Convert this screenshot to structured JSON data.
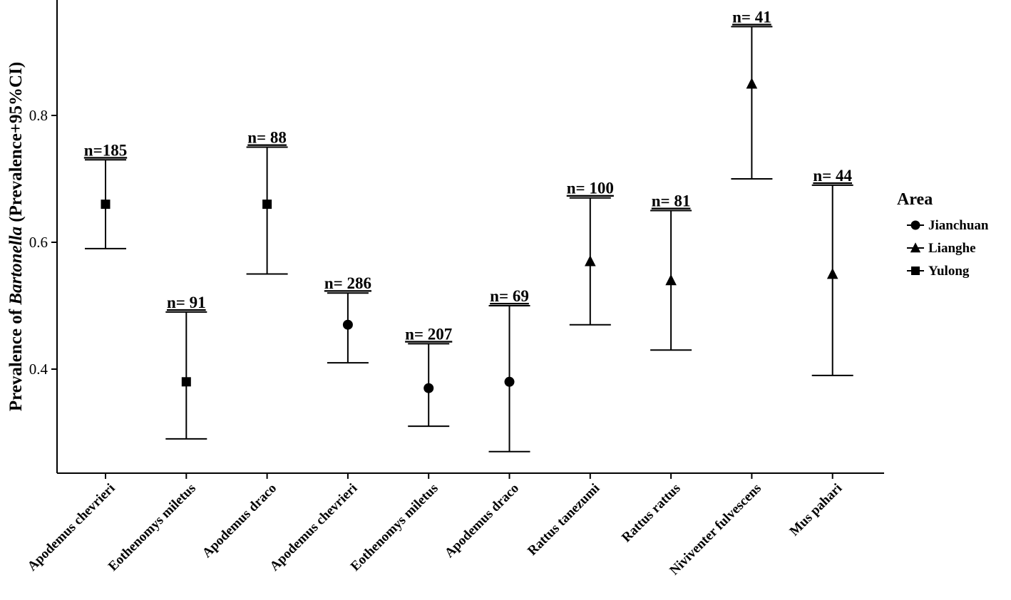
{
  "chart_data": {
    "type": "errorbar",
    "title": "",
    "xlabel": "",
    "ylabel": {
      "prefix": "Prevalence of ",
      "italic": "Bartonella",
      "suffix": " (Prevalence+95%CI)"
    },
    "ylim": [
      0.23,
      0.97
    ],
    "yticks": [
      0.4,
      0.6,
      0.8
    ],
    "ytick_labels": [
      "0.4",
      "0.6",
      "0.8"
    ],
    "legend": {
      "title": "Area",
      "position": "right",
      "entries": [
        {
          "label": "Jianchuan",
          "marker": "circle"
        },
        {
          "label": "Lianghe",
          "marker": "triangle"
        },
        {
          "label": "Yulong",
          "marker": "square"
        }
      ]
    },
    "points": [
      {
        "category": "Apodemus chevrieri",
        "area": "Yulong",
        "marker": "square",
        "value": 0.66,
        "lower": 0.59,
        "upper": 0.73,
        "n_label": "n=185"
      },
      {
        "category": "Eothenomys miletus",
        "area": "Yulong",
        "marker": "square",
        "value": 0.38,
        "lower": 0.29,
        "upper": 0.49,
        "n_label": "n= 91"
      },
      {
        "category": "Apodemus draco",
        "area": "Yulong",
        "marker": "square",
        "value": 0.66,
        "lower": 0.55,
        "upper": 0.75,
        "n_label": "n= 88"
      },
      {
        "category": "Apodemus chevrieri",
        "area": "Jianchuan",
        "marker": "circle",
        "value": 0.47,
        "lower": 0.41,
        "upper": 0.52,
        "n_label": "n= 286"
      },
      {
        "category": "Eothenomys miletus",
        "area": "Jianchuan",
        "marker": "circle",
        "value": 0.37,
        "lower": 0.31,
        "upper": 0.44,
        "n_label": "n= 207"
      },
      {
        "category": "Apodemus draco",
        "area": "Jianchuan",
        "marker": "circle",
        "value": 0.38,
        "lower": 0.27,
        "upper": 0.5,
        "n_label": "n= 69"
      },
      {
        "category": "Rattus tanezumi",
        "area": "Lianghe",
        "marker": "triangle",
        "value": 0.57,
        "lower": 0.47,
        "upper": 0.67,
        "n_label": "n= 100"
      },
      {
        "category": "Rattus rattus",
        "area": "Lianghe",
        "marker": "triangle",
        "value": 0.54,
        "lower": 0.43,
        "upper": 0.65,
        "n_label": "n= 81"
      },
      {
        "category": "Niviventer fulvescens",
        "area": "Lianghe",
        "marker": "triangle",
        "value": 0.85,
        "lower": 0.7,
        "upper": 0.94,
        "n_label": "n= 41"
      },
      {
        "category": "Mus pahari",
        "area": "Lianghe",
        "marker": "triangle",
        "value": 0.55,
        "lower": 0.39,
        "upper": 0.69,
        "n_label": "n= 44"
      }
    ]
  }
}
